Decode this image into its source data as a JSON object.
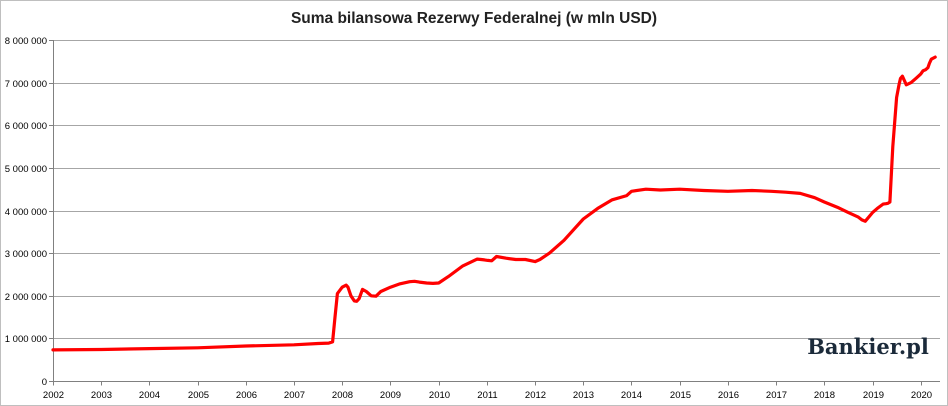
{
  "chart_data": {
    "type": "line",
    "title": "Suma bilansowa Rezerwy Federalnej (w mln USD)",
    "xlabel": "",
    "ylabel": "",
    "xlim": [
      2002.0,
      2020.4
    ],
    "ylim": [
      0,
      8000000
    ],
    "x_ticks": [
      "2002",
      "2003",
      "2004",
      "2005",
      "2006",
      "2007",
      "2008",
      "2009",
      "2010",
      "2011",
      "2012",
      "2013",
      "2014",
      "2015",
      "2016",
      "2017",
      "2018",
      "2019",
      "2020"
    ],
    "y_ticks": [
      "0",
      "1 000 000",
      "2 000 000",
      "3 000 000",
      "4 000 000",
      "5 000 000",
      "6 000 000",
      "7 000 000",
      "8 000 000"
    ],
    "grid": true,
    "line_color": "#ff0000",
    "series": [
      {
        "x": [
          2002.0,
          2003.0,
          2004.0,
          2005.0,
          2006.0,
          2007.0,
          2007.5,
          2007.72,
          2007.8,
          2007.85,
          2007.9,
          2008.0,
          2008.08,
          2008.12,
          2008.18,
          2008.25,
          2008.3,
          2008.35,
          2008.42,
          2008.5,
          2008.6,
          2008.7,
          2008.8,
          2009.0,
          2009.2,
          2009.4,
          2009.5,
          2009.6,
          2009.75,
          2009.88,
          2010.0,
          2010.2,
          2010.5,
          2010.8,
          2010.88,
          2010.95,
          2011.02,
          2011.1,
          2011.2,
          2011.4,
          2011.6,
          2011.8,
          2012.0,
          2012.1,
          2012.3,
          2012.6,
          2012.8,
          2013.0,
          2013.3,
          2013.6,
          2013.9,
          2014.0,
          2014.3,
          2014.6,
          2015.0,
          2015.5,
          2016.0,
          2016.5,
          2016.9,
          2017.2,
          2017.5,
          2017.8,
          2018.0,
          2018.3,
          2018.5,
          2018.7,
          2018.78,
          2018.85,
          2019.0,
          2019.1,
          2019.22,
          2019.28,
          2019.32,
          2019.36,
          2019.42,
          2019.5,
          2019.55,
          2019.58,
          2019.62,
          2019.7,
          2019.8,
          2019.9,
          2020.0,
          2020.05,
          2020.1,
          2020.15,
          2020.18,
          2020.22,
          2020.3
        ],
        "values": [
          730000,
          740000,
          760000,
          780000,
          820000,
          850000,
          880000,
          890000,
          920000,
          1500000,
          2050000,
          2200000,
          2250000,
          2200000,
          2000000,
          1880000,
          1870000,
          1930000,
          2150000,
          2100000,
          2000000,
          1990000,
          2100000,
          2200000,
          2280000,
          2330000,
          2340000,
          2320000,
          2300000,
          2290000,
          2300000,
          2450000,
          2700000,
          2860000,
          2850000,
          2840000,
          2830000,
          2820000,
          2920000,
          2880000,
          2850000,
          2850000,
          2800000,
          2850000,
          3000000,
          3300000,
          3550000,
          3800000,
          4050000,
          4250000,
          4350000,
          4450000,
          4500000,
          4480000,
          4500000,
          4470000,
          4450000,
          4470000,
          4450000,
          4430000,
          4400000,
          4300000,
          4200000,
          4060000,
          3950000,
          3850000,
          3780000,
          3750000,
          3950000,
          4050000,
          4150000,
          4160000,
          4170000,
          4200000,
          5500000,
          6650000,
          6950000,
          7100000,
          7150000,
          6950000,
          7000000,
          7100000,
          7200000,
          7280000,
          7300000,
          7350000,
          7450000,
          7550000,
          7600000
        ]
      }
    ]
  },
  "watermark": "Bankier.pl"
}
